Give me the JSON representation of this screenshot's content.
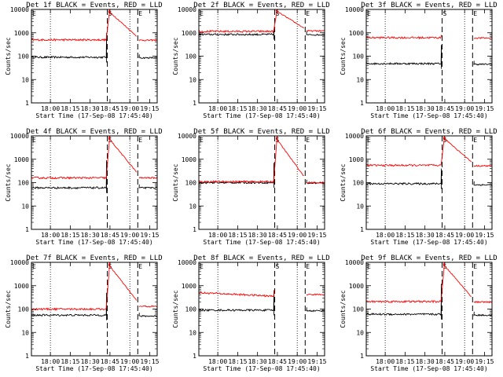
{
  "chart_data": [
    {
      "type": "line",
      "title": "Det 1f BLACK = Events, RED = LLD",
      "xlabel": "Start Time (17-Sep-08 17:45:40)",
      "ylabel": "Counts/sec",
      "ylim": [
        1,
        10000
      ],
      "yscale": "log",
      "xticks": [
        "18:00",
        "18:15",
        "18:30",
        "18:45",
        "19:00",
        "19:15"
      ],
      "yticks": [
        "1",
        "10",
        "100",
        "1000",
        "10000"
      ],
      "markers": {
        "S": "18:43",
        "E": "19:06"
      },
      "series": [
        {
          "name": "Events",
          "color": "#000000",
          "pre": 90,
          "post": 85,
          "spike": 1000
        },
        {
          "name": "LLD",
          "color": "#ff0000",
          "pre": 500,
          "post": 480,
          "flare": true
        }
      ]
    },
    {
      "type": "line",
      "title": "Det 2f BLACK = Events, RED = LLD",
      "xlabel": "Start Time (17-Sep-08 17:45:40)",
      "ylabel": "Counts/sec",
      "ylim": [
        1,
        10000
      ],
      "yscale": "log",
      "xticks": [
        "18:00",
        "18:15",
        "18:30",
        "18:45",
        "19:00",
        "19:15"
      ],
      "yticks": [
        "1",
        "10",
        "100",
        "1000",
        "10000"
      ],
      "markers": {
        "S": "18:43",
        "E": "19:06"
      },
      "series": [
        {
          "name": "Events",
          "color": "#000000",
          "pre": 850,
          "post": 820,
          "spike": 1300
        },
        {
          "name": "LLD",
          "color": "#ff0000",
          "pre": 1150,
          "post": 1200,
          "flare": true
        }
      ]
    },
    {
      "type": "line",
      "title": "Det 3f BLACK = Events, RED = LLD",
      "xlabel": "Start Time (17-Sep-08 17:45:40)",
      "ylabel": "Counts/sec",
      "ylim": [
        1,
        10000
      ],
      "yscale": "log",
      "xticks": [
        "18:00",
        "18:15",
        "18:30",
        "18:45",
        "19:00",
        "19:15"
      ],
      "yticks": [
        "1",
        "10",
        "100",
        "1000",
        "10000"
      ],
      "markers": {
        "S": "18:43",
        "E": "19:06"
      },
      "series": [
        {
          "name": "Events",
          "color": "#000000",
          "pre": 48,
          "post": 45,
          "spike": 300
        },
        {
          "name": "LLD",
          "color": "#ff0000",
          "pre": 620,
          "post": 600,
          "flare": false
        }
      ]
    },
    {
      "type": "line",
      "title": "Det 4f BLACK = Events, RED = LLD",
      "xlabel": "Start Time (17-Sep-08 17:45:40)",
      "ylabel": "Counts/sec",
      "ylim": [
        1,
        10000
      ],
      "yscale": "log",
      "xticks": [
        "18:00",
        "18:15",
        "18:30",
        "18:45",
        "19:00",
        "19:15"
      ],
      "yticks": [
        "1",
        "10",
        "100",
        "1000",
        "10000"
      ],
      "markers": {
        "S": "18:43",
        "E": "19:06"
      },
      "series": [
        {
          "name": "Events",
          "color": "#000000",
          "pre": 60,
          "post": 60,
          "spike": 900
        },
        {
          "name": "LLD",
          "color": "#ff0000",
          "pre": 160,
          "post": 160,
          "flare": true
        }
      ]
    },
    {
      "type": "line",
      "title": "Det 5f BLACK = Events, RED = LLD",
      "xlabel": "Start Time (17-Sep-08 17:45:40)",
      "ylabel": "Counts/sec",
      "ylim": [
        1,
        10000
      ],
      "yscale": "log",
      "xticks": [
        "18:00",
        "18:15",
        "18:30",
        "18:45",
        "19:00",
        "19:15"
      ],
      "yticks": [
        "1",
        "10",
        "100",
        "1000",
        "10000"
      ],
      "markers": {
        "S": "18:43",
        "E": "19:06"
      },
      "series": [
        {
          "name": "Events",
          "color": "#000000",
          "pre": 100,
          "post": 95,
          "spike": 700
        },
        {
          "name": "LLD",
          "color": "#ff0000",
          "pre": 110,
          "post": 100,
          "flare": true
        }
      ]
    },
    {
      "type": "line",
      "title": "Det 6f BLACK = Events, RED = LLD",
      "xlabel": "Start Time (17-Sep-08 17:45:40)",
      "ylabel": "Counts/sec",
      "ylim": [
        1,
        10000
      ],
      "yscale": "log",
      "xticks": [
        "18:00",
        "18:15",
        "18:30",
        "18:45",
        "19:00",
        "19:15"
      ],
      "yticks": [
        "1",
        "10",
        "100",
        "1000",
        "10000"
      ],
      "markers": {
        "S": "18:43",
        "E": "19:06"
      },
      "series": [
        {
          "name": "Events",
          "color": "#000000",
          "pre": 90,
          "post": 80,
          "spike": 400
        },
        {
          "name": "LLD",
          "color": "#ff0000",
          "pre": 550,
          "post": 520,
          "flare": true
        }
      ]
    },
    {
      "type": "line",
      "title": "Det 7f BLACK = Events, RED = LLD",
      "xlabel": "Start Time (17-Sep-08 17:45:40)",
      "ylabel": "Counts/sec",
      "ylim": [
        1,
        10000
      ],
      "yscale": "log",
      "xticks": [
        "18:00",
        "18:15",
        "18:30",
        "18:45",
        "19:00",
        "19:15"
      ],
      "yticks": [
        "1",
        "10",
        "100",
        "1000",
        "10000"
      ],
      "markers": {
        "S": "18:43",
        "E": "19:06"
      },
      "series": [
        {
          "name": "Events",
          "color": "#000000",
          "pre": 55,
          "post": 50,
          "spike": 500
        },
        {
          "name": "LLD",
          "color": "#ff0000",
          "pre": 100,
          "post": 130,
          "flare": true
        }
      ]
    },
    {
      "type": "line",
      "title": "Det 8f BLACK = Events, RED = LLD",
      "xlabel": "Start Time (17-Sep-08 17:45:40)",
      "ylabel": "Counts/sec",
      "ylim": [
        1,
        10000
      ],
      "yscale": "log",
      "xticks": [
        "18:00",
        "18:15",
        "18:30",
        "18:45",
        "19:00",
        "19:15"
      ],
      "yticks": [
        "1",
        "10",
        "100",
        "1000",
        "10000"
      ],
      "markers": {
        "S": "18:43",
        "E": "19:06"
      },
      "series": [
        {
          "name": "Events",
          "color": "#000000",
          "pre": 90,
          "post": 85,
          "spike": 600
        },
        {
          "name": "LLD",
          "color": "#ff0000",
          "pre": 500,
          "post": 420,
          "flare": false
        }
      ]
    },
    {
      "type": "line",
      "title": "Det 9f BLACK = Events, RED = LLD",
      "xlabel": "Start Time (17-Sep-08 17:45:40)",
      "ylabel": "Counts/sec",
      "ylim": [
        1,
        10000
      ],
      "yscale": "log",
      "xticks": [
        "18:00",
        "18:15",
        "18:30",
        "18:45",
        "19:00",
        "19:15"
      ],
      "yticks": [
        "1",
        "10",
        "100",
        "1000",
        "10000"
      ],
      "markers": {
        "S": "18:43",
        "E": "19:06"
      },
      "series": [
        {
          "name": "Events",
          "color": "#000000",
          "pre": 60,
          "post": 55,
          "spike": 1200
        },
        {
          "name": "LLD",
          "color": "#ff0000",
          "pre": 210,
          "post": 200,
          "flare": true
        }
      ]
    }
  ]
}
